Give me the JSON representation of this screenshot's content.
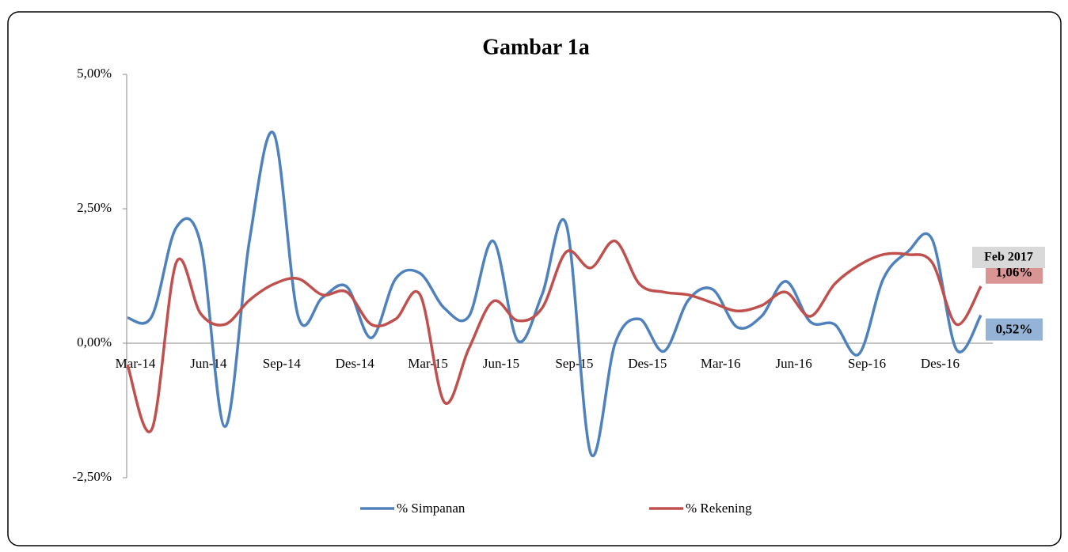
{
  "chart_data": {
    "type": "line",
    "title": "Gambar 1a",
    "categories": [
      "Mar-14",
      null,
      null,
      "Jun-14",
      null,
      null,
      "Sep-14",
      null,
      null,
      "Des-14",
      null,
      null,
      "Mar-15",
      null,
      null,
      "Jun-15",
      null,
      null,
      "Sep-15",
      null,
      null,
      "Des-15",
      null,
      null,
      "Mar-16",
      null,
      null,
      "Jun-16",
      null,
      null,
      "Sep-16",
      null,
      null,
      "Des-16",
      null,
      null
    ],
    "series": [
      {
        "name": "% Simpanan",
        "color": "#4f81bd",
        "values": [
          0.47,
          0.5,
          2.15,
          1.85,
          -1.55,
          1.9,
          3.9,
          0.5,
          0.85,
          1.05,
          0.1,
          1.2,
          1.3,
          0.65,
          0.5,
          1.9,
          0.05,
          0.9,
          2.2,
          -2.05,
          0.0,
          0.45,
          -0.15,
          0.8,
          1.0,
          0.3,
          0.5,
          1.15,
          0.4,
          0.35,
          -0.2,
          1.2,
          1.7,
          1.93,
          -0.12,
          0.52
        ],
        "value_labels": [
          null,
          null,
          null,
          null,
          null,
          null,
          null,
          null,
          null,
          null,
          null,
          null,
          null,
          null,
          null,
          null,
          null,
          null,
          null,
          null,
          null,
          null,
          null,
          null,
          null,
          null,
          null,
          null,
          null,
          null,
          null,
          null,
          null,
          null,
          null,
          "0,52%"
        ],
        "label_color": "#95b3d7"
      },
      {
        "name": "% Rekening",
        "color": "#c0504d",
        "values": [
          -0.4,
          -1.6,
          1.5,
          0.55,
          0.35,
          0.8,
          1.1,
          1.2,
          0.9,
          0.95,
          0.35,
          0.45,
          0.9,
          -1.1,
          -0.1,
          0.78,
          0.42,
          0.65,
          1.7,
          1.4,
          1.9,
          1.1,
          0.95,
          0.9,
          0.75,
          0.6,
          0.7,
          0.95,
          0.5,
          1.1,
          1.45,
          1.65,
          1.65,
          1.5,
          0.35,
          1.06
        ],
        "value_labels": [
          null,
          null,
          null,
          null,
          null,
          null,
          null,
          null,
          null,
          null,
          null,
          null,
          null,
          null,
          null,
          null,
          null,
          null,
          null,
          null,
          null,
          null,
          null,
          null,
          null,
          null,
          null,
          null,
          null,
          null,
          null,
          null,
          null,
          null,
          null,
          "1,06%"
        ],
        "label_color": "#d99594"
      }
    ],
    "annotation": "Feb 2017",
    "ylim": [
      -2.5,
      5
    ],
    "yticks": [
      {
        "value": -2.5,
        "label": "-2,50%"
      },
      {
        "value": 0,
        "label": "0,00%"
      },
      {
        "value": 2.5,
        "label": "2,50%"
      },
      {
        "value": 5,
        "label": "5,00%"
      }
    ],
    "legend": "bottom"
  }
}
